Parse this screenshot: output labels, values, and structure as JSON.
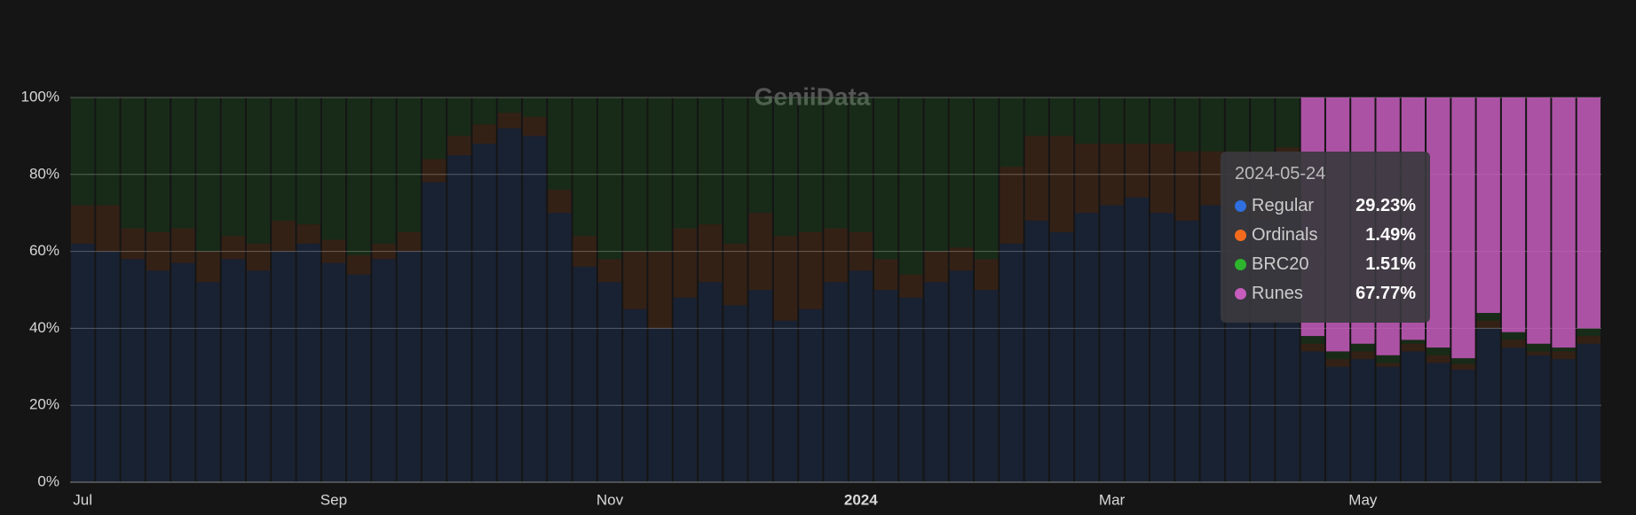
{
  "chart_data": {
    "type": "stacked-bar-percent",
    "watermark": "GeniiData",
    "categories": [
      "Jul",
      null,
      null,
      null,
      null,
      null,
      null,
      null,
      null,
      null,
      "Sep",
      null,
      null,
      null,
      null,
      null,
      null,
      null,
      null,
      null,
      null,
      "Nov",
      null,
      null,
      null,
      null,
      null,
      null,
      null,
      null,
      null,
      "2024",
      null,
      null,
      null,
      null,
      null,
      null,
      null,
      null,
      null,
      "Mar",
      null,
      null,
      null,
      null,
      null,
      null,
      null,
      null,
      null,
      "May",
      null,
      null,
      null,
      null,
      null,
      null,
      null,
      null,
      null
    ],
    "series": [
      {
        "name": "Regular",
        "color": "#2f6fe0",
        "values": [
          62,
          60,
          58,
          55,
          57,
          52,
          58,
          55,
          60,
          62,
          57,
          54,
          58,
          60,
          78,
          85,
          88,
          92,
          90,
          70,
          56,
          52,
          45,
          40,
          48,
          52,
          46,
          50,
          42,
          45,
          52,
          55,
          50,
          48,
          52,
          55,
          50,
          62,
          68,
          65,
          70,
          72,
          74,
          70,
          68,
          72,
          70,
          68,
          72,
          34,
          30,
          32,
          30,
          34,
          31,
          29.23,
          40,
          35,
          33,
          32,
          36
        ]
      },
      {
        "name": "Ordinals",
        "color": "#f26b1d",
        "values": [
          10,
          12,
          8,
          10,
          9,
          8,
          6,
          7,
          8,
          5,
          6,
          5,
          4,
          5,
          6,
          5,
          5,
          4,
          5,
          6,
          8,
          6,
          15,
          20,
          18,
          15,
          16,
          20,
          22,
          20,
          14,
          10,
          8,
          6,
          8,
          6,
          8,
          20,
          22,
          25,
          18,
          16,
          14,
          18,
          18,
          14,
          16,
          18,
          15,
          2,
          2,
          2,
          1,
          2,
          2,
          1.49,
          2,
          2,
          1,
          2,
          2
        ]
      },
      {
        "name": "BRC20",
        "color": "#2db32d",
        "values": [
          28,
          28,
          34,
          35,
          34,
          40,
          36,
          38,
          32,
          33,
          37,
          41,
          38,
          35,
          16,
          10,
          7,
          4,
          5,
          24,
          36,
          42,
          40,
          40,
          34,
          33,
          38,
          30,
          36,
          35,
          34,
          35,
          42,
          46,
          40,
          39,
          42,
          18,
          10,
          10,
          12,
          12,
          12,
          12,
          14,
          14,
          14,
          14,
          13,
          2,
          2,
          2,
          2,
          1,
          2,
          1.51,
          2,
          2,
          2,
          1,
          2
        ]
      },
      {
        "name": "Runes",
        "color": "#c75dbd",
        "values": [
          0,
          0,
          0,
          0,
          0,
          0,
          0,
          0,
          0,
          0,
          0,
          0,
          0,
          0,
          0,
          0,
          0,
          0,
          0,
          0,
          0,
          0,
          0,
          0,
          0,
          0,
          0,
          0,
          0,
          0,
          0,
          0,
          0,
          0,
          0,
          0,
          0,
          0,
          0,
          0,
          0,
          0,
          0,
          0,
          0,
          0,
          0,
          0,
          0,
          62,
          66,
          64,
          67,
          63,
          65,
          67.77,
          56,
          61,
          64,
          65,
          60
        ]
      }
    ],
    "ylim": [
      0,
      100
    ],
    "yticks": [
      {
        "value": 0,
        "label": "0%"
      },
      {
        "value": 20,
        "label": "20%"
      },
      {
        "value": 40,
        "label": "40%"
      },
      {
        "value": 60,
        "label": "60%"
      },
      {
        "value": 80,
        "label": "80%"
      },
      {
        "value": 100,
        "label": "100%"
      }
    ],
    "grid": true,
    "tooltip": {
      "date": "2024-05-24",
      "values": [
        29.23,
        1.49,
        1.51,
        67.77
      ],
      "value_labels": [
        "29.23%",
        "1.49%",
        "1.51%",
        "67.77%"
      ]
    }
  }
}
